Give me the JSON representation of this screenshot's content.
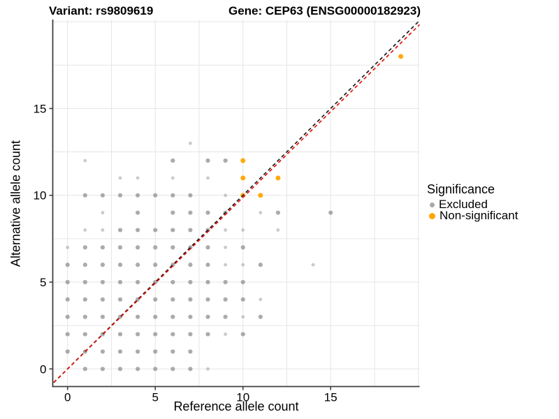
{
  "chart_data": {
    "type": "scatter",
    "titles": {
      "left": "Variant: rs9809619",
      "right": "Gene: CEP63 (ENSG00000182923)"
    },
    "xlabel": "Reference allele count",
    "ylabel": "Alternative allele count",
    "xticks": [
      0,
      5,
      10,
      15
    ],
    "yticks": [
      0,
      5,
      10,
      15
    ],
    "xlim": [
      -0.9,
      20.1
    ],
    "ylim": [
      -0.9,
      20.1
    ],
    "grid_step": 2.5,
    "grid": "on",
    "legend": {
      "title": "Significance",
      "position": "right",
      "items": [
        {
          "label": "Excluded",
          "color": "#a9a9a9"
        },
        {
          "label": "Non-significant",
          "color": "#FFA500"
        }
      ]
    },
    "colors": {
      "excluded": "#969696",
      "non_significant": "#FFA500",
      "grid": "#e5e5e5",
      "axis": "#3f3f3f",
      "identity_line": "#1a1a1a",
      "fit_line": "#e3120b",
      "text": "#000000"
    },
    "lines": [
      {
        "name": "identity",
        "slope": 1.0,
        "intercept": 0,
        "color_key": "identity_line",
        "dash": "5 4"
      },
      {
        "name": "fit",
        "slope": 0.988,
        "intercept": 0,
        "color_key": "fit_line",
        "dash": "5 4"
      }
    ],
    "series": [
      {
        "name": "Excluded",
        "points": [
          [
            1,
            0,
            2
          ],
          [
            2,
            0,
            2
          ],
          [
            3,
            0,
            2
          ],
          [
            4,
            0,
            2
          ],
          [
            5,
            0,
            2
          ],
          [
            6,
            0,
            2
          ],
          [
            7,
            0,
            2
          ],
          [
            8,
            0,
            1
          ],
          [
            0,
            1,
            2
          ],
          [
            1,
            1,
            2
          ],
          [
            2,
            1,
            2
          ],
          [
            3,
            1,
            2
          ],
          [
            4,
            1,
            2
          ],
          [
            5,
            1,
            2
          ],
          [
            6,
            1,
            2
          ],
          [
            7,
            1,
            2
          ],
          [
            0,
            2,
            2
          ],
          [
            1,
            2,
            2
          ],
          [
            2,
            2,
            2
          ],
          [
            3,
            2,
            2
          ],
          [
            4,
            2,
            2
          ],
          [
            5,
            2,
            2
          ],
          [
            6,
            2,
            2
          ],
          [
            7,
            2,
            2
          ],
          [
            8,
            2,
            2
          ],
          [
            9,
            2,
            1
          ],
          [
            10,
            2,
            2
          ],
          [
            0,
            3,
            2
          ],
          [
            1,
            3,
            2
          ],
          [
            2,
            3,
            2
          ],
          [
            3,
            3,
            2
          ],
          [
            4,
            3,
            2
          ],
          [
            5,
            3,
            2
          ],
          [
            6,
            3,
            2
          ],
          [
            7,
            3,
            2
          ],
          [
            8,
            3,
            2
          ],
          [
            9,
            3,
            2
          ],
          [
            10,
            3,
            1
          ],
          [
            11,
            3,
            2
          ],
          [
            0,
            4,
            2
          ],
          [
            1,
            4,
            2
          ],
          [
            2,
            4,
            2
          ],
          [
            3,
            4,
            2
          ],
          [
            4,
            4,
            2
          ],
          [
            5,
            4,
            2
          ],
          [
            6,
            4,
            2
          ],
          [
            7,
            4,
            2
          ],
          [
            8,
            4,
            2
          ],
          [
            9,
            4,
            2
          ],
          [
            10,
            4,
            2
          ],
          [
            11,
            4,
            1
          ],
          [
            0,
            5,
            2
          ],
          [
            1,
            5,
            2
          ],
          [
            2,
            5,
            2
          ],
          [
            3,
            5,
            2
          ],
          [
            4,
            5,
            2
          ],
          [
            5,
            5,
            2
          ],
          [
            6,
            5,
            2
          ],
          [
            7,
            5,
            2
          ],
          [
            8,
            5,
            2
          ],
          [
            9,
            5,
            2
          ],
          [
            10,
            5,
            2
          ],
          [
            0,
            6,
            2
          ],
          [
            1,
            6,
            2
          ],
          [
            2,
            6,
            2
          ],
          [
            3,
            6,
            2
          ],
          [
            4,
            6,
            2
          ],
          [
            5,
            6,
            2
          ],
          [
            6,
            6,
            2
          ],
          [
            7,
            6,
            2
          ],
          [
            8,
            6,
            2
          ],
          [
            9,
            6,
            1
          ],
          [
            10,
            6,
            1
          ],
          [
            11,
            6,
            2
          ],
          [
            14,
            6,
            1
          ],
          [
            0,
            7,
            1
          ],
          [
            1,
            7,
            2
          ],
          [
            2,
            7,
            2
          ],
          [
            3,
            7,
            2
          ],
          [
            4,
            7,
            2
          ],
          [
            5,
            7,
            2
          ],
          [
            6,
            7,
            2
          ],
          [
            7,
            7,
            2
          ],
          [
            8,
            7,
            2
          ],
          [
            9,
            7,
            1
          ],
          [
            10,
            7,
            2
          ],
          [
            1,
            8,
            1
          ],
          [
            2,
            8,
            1
          ],
          [
            3,
            8,
            2
          ],
          [
            4,
            8,
            2
          ],
          [
            5,
            8,
            2
          ],
          [
            6,
            8,
            2
          ],
          [
            7,
            8,
            2
          ],
          [
            8,
            8,
            2
          ],
          [
            9,
            8,
            1
          ],
          [
            10,
            8,
            1
          ],
          [
            12,
            8,
            1
          ],
          [
            2,
            9,
            1
          ],
          [
            4,
            9,
            2
          ],
          [
            6,
            9,
            2
          ],
          [
            7,
            9,
            2
          ],
          [
            8,
            9,
            2
          ],
          [
            9,
            9,
            2
          ],
          [
            11,
            9,
            1
          ],
          [
            12,
            9,
            2
          ],
          [
            15,
            9,
            2
          ],
          [
            1,
            10,
            2
          ],
          [
            2,
            10,
            2
          ],
          [
            3,
            10,
            2
          ],
          [
            4,
            10,
            2
          ],
          [
            5,
            10,
            2
          ],
          [
            6,
            10,
            2
          ],
          [
            7,
            10,
            2
          ],
          [
            9,
            10,
            1
          ],
          [
            3,
            11,
            1
          ],
          [
            4,
            11,
            1
          ],
          [
            6,
            11,
            1
          ],
          [
            8,
            11,
            1
          ],
          [
            1,
            12,
            1
          ],
          [
            6,
            12,
            2
          ],
          [
            8,
            12,
            2
          ],
          [
            9,
            12,
            2
          ],
          [
            7,
            13,
            1
          ]
        ]
      },
      {
        "name": "Non-significant",
        "points": [
          [
            10,
            10,
            3
          ],
          [
            11,
            10,
            3
          ],
          [
            10,
            11,
            3
          ],
          [
            12,
            11,
            3
          ],
          [
            10,
            12,
            3
          ],
          [
            19,
            18,
            3
          ]
        ]
      }
    ]
  }
}
